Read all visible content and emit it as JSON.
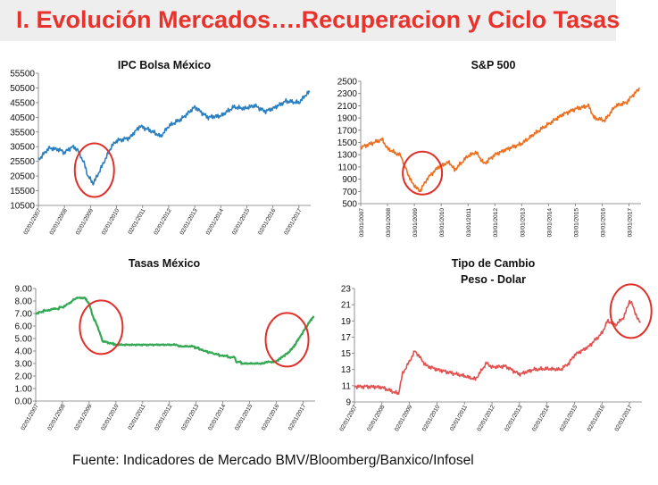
{
  "header": {
    "title": "I. Evolución Mercados….Recuperacion y Ciclo Tasas"
  },
  "footer": {
    "source": "Fuente: Indicadores de Mercado BMV/Bloomberg/Banxico/Infosel"
  },
  "colors": {
    "title": "#e8322b",
    "highlight_circle": "#e0302a"
  },
  "chart_data": [
    {
      "type": "line",
      "title": "IPC Bolsa México",
      "color": "#2a7fc0",
      "ylim": [
        10500,
        55500
      ],
      "yticks": [
        10500,
        15500,
        20500,
        25500,
        30500,
        35500,
        40500,
        45500,
        50500,
        55500
      ],
      "xticks": [
        "02/01/2007",
        "02/01/2008",
        "02/01/2009",
        "02/01/2010",
        "02/01/2011",
        "02/01/2012",
        "02/01/2013",
        "02/01/2014",
        "02/01/2015",
        "02/01/2016",
        "02/01/2017"
      ],
      "x": [
        2007.0,
        2007.4,
        2007.8,
        2008.0,
        2008.3,
        2008.5,
        2008.75,
        2008.9,
        2009.1,
        2009.2,
        2009.5,
        2009.8,
        2010.0,
        2010.5,
        2010.9,
        2011.3,
        2011.7,
        2012.0,
        2012.5,
        2013.0,
        2013.5,
        2014.0,
        2014.5,
        2014.9,
        2015.3,
        2015.7,
        2016.0,
        2016.5,
        2017.0,
        2017.3,
        2017.4
      ],
      "values": [
        26000,
        30000,
        29500,
        28500,
        30500,
        29500,
        25000,
        20500,
        18000,
        19500,
        25000,
        30500,
        32500,
        33500,
        37500,
        36000,
        34000,
        37500,
        40000,
        44000,
        40500,
        41000,
        44000,
        43500,
        44500,
        42500,
        43500,
        46000,
        45500,
        48500,
        49000
      ],
      "annotations": [
        {
          "type": "circle",
          "x": 2009.15,
          "y": 22500
        }
      ]
    },
    {
      "type": "line",
      "title": "S&P 500",
      "color": "#ec7021",
      "ylim": [
        500,
        2500
      ],
      "yticks": [
        500,
        700,
        900,
        1100,
        1300,
        1500,
        1700,
        1900,
        2100,
        2300,
        2500
      ],
      "xticks": [
        "03/01/2007",
        "03/01/2008",
        "03/01/2009",
        "03/01/2010",
        "03/01/2011",
        "03/01/2012",
        "03/01/2013",
        "03/01/2014",
        "03/01/2015",
        "03/01/2016",
        "03/01/2017"
      ],
      "x": [
        2007.0,
        2007.5,
        2007.8,
        2008.0,
        2008.5,
        2008.75,
        2008.9,
        2009.2,
        2009.5,
        2009.9,
        2010.3,
        2010.5,
        2011.0,
        2011.3,
        2011.6,
        2012.0,
        2012.5,
        2013.0,
        2013.5,
        2014.0,
        2014.5,
        2015.0,
        2015.5,
        2015.7,
        2016.1,
        2016.5,
        2016.9,
        2017.2,
        2017.4
      ],
      "values": [
        1420,
        1500,
        1550,
        1400,
        1280,
        1000,
        850,
        700,
        920,
        1100,
        1180,
        1050,
        1280,
        1340,
        1150,
        1300,
        1400,
        1480,
        1650,
        1800,
        1950,
        2050,
        2100,
        1900,
        1860,
        2100,
        2150,
        2300,
        2380
      ],
      "annotations": [
        {
          "type": "circle",
          "x": 2009.3,
          "y": 1000
        }
      ]
    },
    {
      "type": "line",
      "title": "Tasas México",
      "color": "#34a853",
      "ylim": [
        0,
        9
      ],
      "yticks": [
        "0.00",
        "1.00",
        "2.00",
        "3.00",
        "4.00",
        "5.00",
        "6.00",
        "7.00",
        "8.00",
        "9.00"
      ],
      "xticks": [
        "02/01/2007",
        "02/01/2008",
        "02/01/2009",
        "02/01/2010",
        "02/01/2011",
        "02/01/2012",
        "02/01/2013",
        "02/01/2014",
        "02/01/2015",
        "02/01/2016",
        "02/01/2017"
      ],
      "x": [
        2007.0,
        2007.3,
        2007.8,
        2008.0,
        2008.3,
        2008.5,
        2008.8,
        2009.0,
        2009.1,
        2009.3,
        2009.5,
        2010.0,
        2011.0,
        2012.0,
        2013.0,
        2013.3,
        2014.0,
        2014.45,
        2014.5,
        2015.0,
        2015.9,
        2016.0,
        2016.4,
        2016.6,
        2016.9,
        2017.2,
        2017.4
      ],
      "values": [
        7.0,
        7.2,
        7.4,
        7.5,
        7.9,
        8.2,
        8.3,
        7.8,
        7.0,
        6.0,
        4.8,
        4.5,
        4.5,
        4.5,
        4.3,
        4.0,
        3.6,
        3.5,
        3.1,
        3.0,
        3.1,
        3.2,
        3.8,
        4.2,
        5.2,
        6.2,
        6.8
      ],
      "annotations": [
        {
          "type": "circle",
          "x": 2009.45,
          "y": 5.9
        },
        {
          "type": "circle",
          "x": 2016.4,
          "y": 4.9
        }
      ]
    },
    {
      "type": "line",
      "title": "Tipo de Cambio",
      "subtitle": "Peso - Dolar",
      "color": "#e2504f",
      "ylim": [
        9,
        23
      ],
      "yticks": [
        9,
        11,
        13,
        15,
        17,
        19,
        21,
        23
      ],
      "xticks": [
        "02/01/2007",
        "02/01/2008",
        "02/01/2009",
        "02/01/2010",
        "02/01/2011",
        "02/01/2012",
        "02/01/2013",
        "02/01/2014",
        "02/01/2015",
        "02/01/2016",
        "02/01/2017"
      ],
      "x": [
        2007.0,
        2007.5,
        2008.0,
        2008.6,
        2008.75,
        2009.0,
        2009.2,
        2009.6,
        2010.0,
        2010.5,
        2011.0,
        2011.4,
        2011.8,
        2012.0,
        2012.5,
        2013.0,
        2013.5,
        2014.0,
        2014.5,
        2014.8,
        2015.0,
        2015.5,
        2016.0,
        2016.2,
        2016.5,
        2016.8,
        2017.0,
        2017.1,
        2017.3,
        2017.4
      ],
      "values": [
        10.9,
        10.9,
        10.8,
        10.0,
        12.5,
        14.0,
        15.3,
        13.5,
        13.0,
        12.6,
        12.2,
        11.8,
        13.8,
        13.3,
        13.4,
        12.4,
        13.0,
        13.1,
        13.0,
        13.8,
        14.8,
        15.8,
        17.5,
        19.0,
        18.5,
        19.5,
        21.5,
        21.0,
        19.2,
        18.8
      ],
      "annotations": [
        {
          "type": "circle",
          "x": 2017.05,
          "y": 20.2
        }
      ]
    }
  ]
}
